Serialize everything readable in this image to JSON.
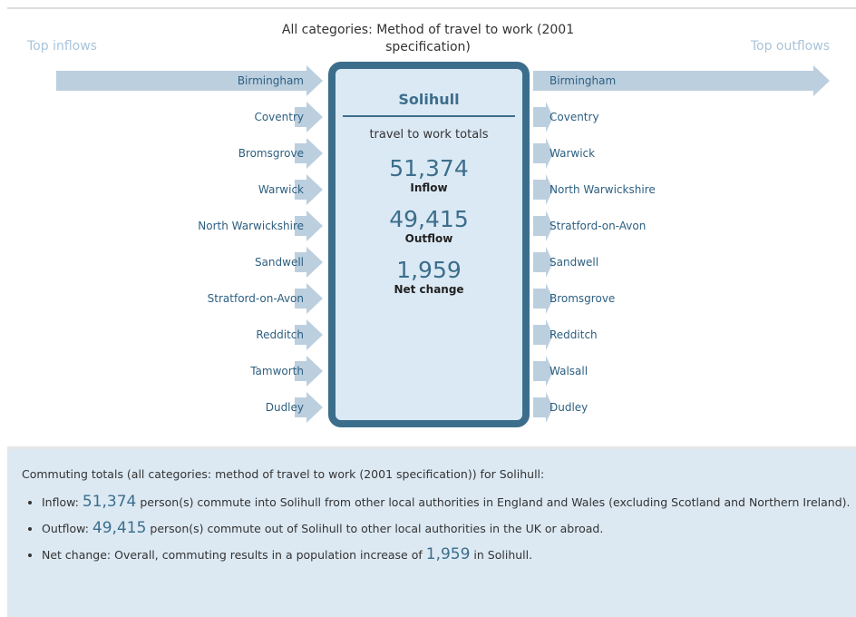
{
  "header": {
    "title": "All categories: Method of travel to work (2001 specification)",
    "left_label": "Top inflows",
    "right_label": "Top outflows"
  },
  "summary": {
    "area": "Solihull",
    "subtitle": "travel to work totals",
    "inflow": "51,374",
    "inflow_label": "Inflow",
    "outflow": "49,415",
    "outflow_label": "Outflow",
    "net": "1,959",
    "net_label": "Net change"
  },
  "inflows": [
    "Birmingham",
    "Coventry",
    "Bromsgrove",
    "Warwick",
    "North Warwickshire",
    "Sandwell",
    "Stratford-on-Avon",
    "Redditch",
    "Tamworth",
    "Dudley"
  ],
  "outflows": [
    "Birmingham",
    "Coventry",
    "Warwick",
    "North Warwickshire",
    "Stratford-on-Avon",
    "Sandwell",
    "Bromsgrove",
    "Redditch",
    "Walsall",
    "Dudley"
  ],
  "details": {
    "intro": "Commuting totals (all categories: method of travel to work (2001 specification)) for Solihull:",
    "bullets": [
      {
        "prefix": "Inflow:",
        "suffix": "person(s) commute into Solihull from other local authorities in England and Wales (excluding Scotland and Northern Ireland)."
      },
      {
        "prefix": "Outflow:",
        "suffix": "person(s) commute out of Solihull to other local authorities in the UK or abroad."
      },
      {
        "prefix": "Net change: Overall, commuting results in a population increase of",
        "suffix": "in Solihull."
      }
    ]
  }
}
